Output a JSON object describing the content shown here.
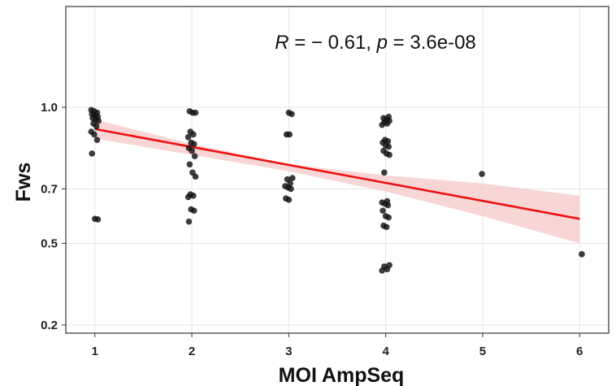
{
  "chart_data": {
    "type": "scatter",
    "xlabel": "MOI AmpSeq",
    "ylabel": "Fws",
    "annotation": {
      "r_symbol": "R",
      "r_text": " = − 0.61, ",
      "p_symbol": "p",
      "p_text": " = 3.6e-08"
    },
    "x_ticks": [
      "1",
      "2",
      "3",
      "4",
      "5",
      "6"
    ],
    "y_ticks": [
      "0.2",
      "0.5",
      "0.7",
      "1.0"
    ],
    "xlim": [
      0.7,
      6.3
    ],
    "ylim": [
      0.17,
      1.37
    ],
    "grid": true,
    "colors": {
      "points": "#111111",
      "fit_line": "#ee1111",
      "confidence_band": "#f7c8c8",
      "panel_border": "#333333",
      "grid": "#e6e6e6"
    },
    "points": [
      {
        "x": 1,
        "y": 0.99
      },
      {
        "x": 1,
        "y": 0.985
      },
      {
        "x": 1,
        "y": 0.98
      },
      {
        "x": 1,
        "y": 0.975
      },
      {
        "x": 1,
        "y": 0.97
      },
      {
        "x": 1,
        "y": 0.965
      },
      {
        "x": 1,
        "y": 0.96
      },
      {
        "x": 1,
        "y": 0.955
      },
      {
        "x": 1,
        "y": 0.95
      },
      {
        "x": 1,
        "y": 0.94
      },
      {
        "x": 1,
        "y": 0.93
      },
      {
        "x": 1,
        "y": 0.91
      },
      {
        "x": 1,
        "y": 0.9
      },
      {
        "x": 1,
        "y": 0.88
      },
      {
        "x": 1,
        "y": 0.83
      },
      {
        "x": 1,
        "y": 0.59
      },
      {
        "x": 1,
        "y": 0.588
      },
      {
        "x": 2,
        "y": 0.985
      },
      {
        "x": 2,
        "y": 0.98
      },
      {
        "x": 2,
        "y": 0.98
      },
      {
        "x": 2,
        "y": 0.91
      },
      {
        "x": 2,
        "y": 0.9
      },
      {
        "x": 2,
        "y": 0.89
      },
      {
        "x": 2,
        "y": 0.87
      },
      {
        "x": 2,
        "y": 0.865
      },
      {
        "x": 2,
        "y": 0.85
      },
      {
        "x": 2,
        "y": 0.84
      },
      {
        "x": 2,
        "y": 0.82
      },
      {
        "x": 2,
        "y": 0.79
      },
      {
        "x": 2,
        "y": 0.76
      },
      {
        "x": 2,
        "y": 0.745
      },
      {
        "x": 2,
        "y": 0.68
      },
      {
        "x": 2,
        "y": 0.675
      },
      {
        "x": 2,
        "y": 0.67
      },
      {
        "x": 2,
        "y": 0.625
      },
      {
        "x": 2,
        "y": 0.62
      },
      {
        "x": 2,
        "y": 0.58
      },
      {
        "x": 3,
        "y": 0.98
      },
      {
        "x": 3,
        "y": 0.975
      },
      {
        "x": 3,
        "y": 0.9
      },
      {
        "x": 3,
        "y": 0.9
      },
      {
        "x": 3,
        "y": 0.74
      },
      {
        "x": 3,
        "y": 0.735
      },
      {
        "x": 3,
        "y": 0.72
      },
      {
        "x": 3,
        "y": 0.71
      },
      {
        "x": 3,
        "y": 0.705
      },
      {
        "x": 3,
        "y": 0.7
      },
      {
        "x": 3,
        "y": 0.665
      },
      {
        "x": 3,
        "y": 0.66
      },
      {
        "x": 4,
        "y": 0.965
      },
      {
        "x": 4,
        "y": 0.96
      },
      {
        "x": 4,
        "y": 0.955
      },
      {
        "x": 4,
        "y": 0.95
      },
      {
        "x": 4,
        "y": 0.945
      },
      {
        "x": 4,
        "y": 0.94
      },
      {
        "x": 4,
        "y": 0.935
      },
      {
        "x": 4,
        "y": 0.88
      },
      {
        "x": 4,
        "y": 0.875
      },
      {
        "x": 4,
        "y": 0.87
      },
      {
        "x": 4,
        "y": 0.86
      },
      {
        "x": 4,
        "y": 0.855
      },
      {
        "x": 4,
        "y": 0.84
      },
      {
        "x": 4,
        "y": 0.83
      },
      {
        "x": 4,
        "y": 0.825
      },
      {
        "x": 4,
        "y": 0.76
      },
      {
        "x": 4,
        "y": 0.655
      },
      {
        "x": 4,
        "y": 0.65
      },
      {
        "x": 4,
        "y": 0.645
      },
      {
        "x": 4,
        "y": 0.64
      },
      {
        "x": 4,
        "y": 0.62
      },
      {
        "x": 4,
        "y": 0.6
      },
      {
        "x": 4,
        "y": 0.595
      },
      {
        "x": 4,
        "y": 0.565
      },
      {
        "x": 4,
        "y": 0.56
      },
      {
        "x": 4,
        "y": 0.42
      },
      {
        "x": 4,
        "y": 0.415
      },
      {
        "x": 4,
        "y": 0.405
      },
      {
        "x": 4,
        "y": 0.4
      },
      {
        "x": 5,
        "y": 0.755
      },
      {
        "x": 6,
        "y": 0.46
      }
    ],
    "fit": {
      "x": [
        1,
        6
      ],
      "y": [
        0.92,
        0.59
      ]
    },
    "ci_upper": [
      [
        1,
        0.955
      ],
      [
        2,
        0.865
      ],
      [
        3,
        0.79
      ],
      [
        4,
        0.75
      ],
      [
        5,
        0.72
      ],
      [
        6,
        0.675
      ]
    ],
    "ci_lower": [
      [
        1,
        0.885
      ],
      [
        2,
        0.825
      ],
      [
        3,
        0.765
      ],
      [
        4,
        0.69
      ],
      [
        5,
        0.6
      ],
      [
        6,
        0.5
      ]
    ]
  }
}
